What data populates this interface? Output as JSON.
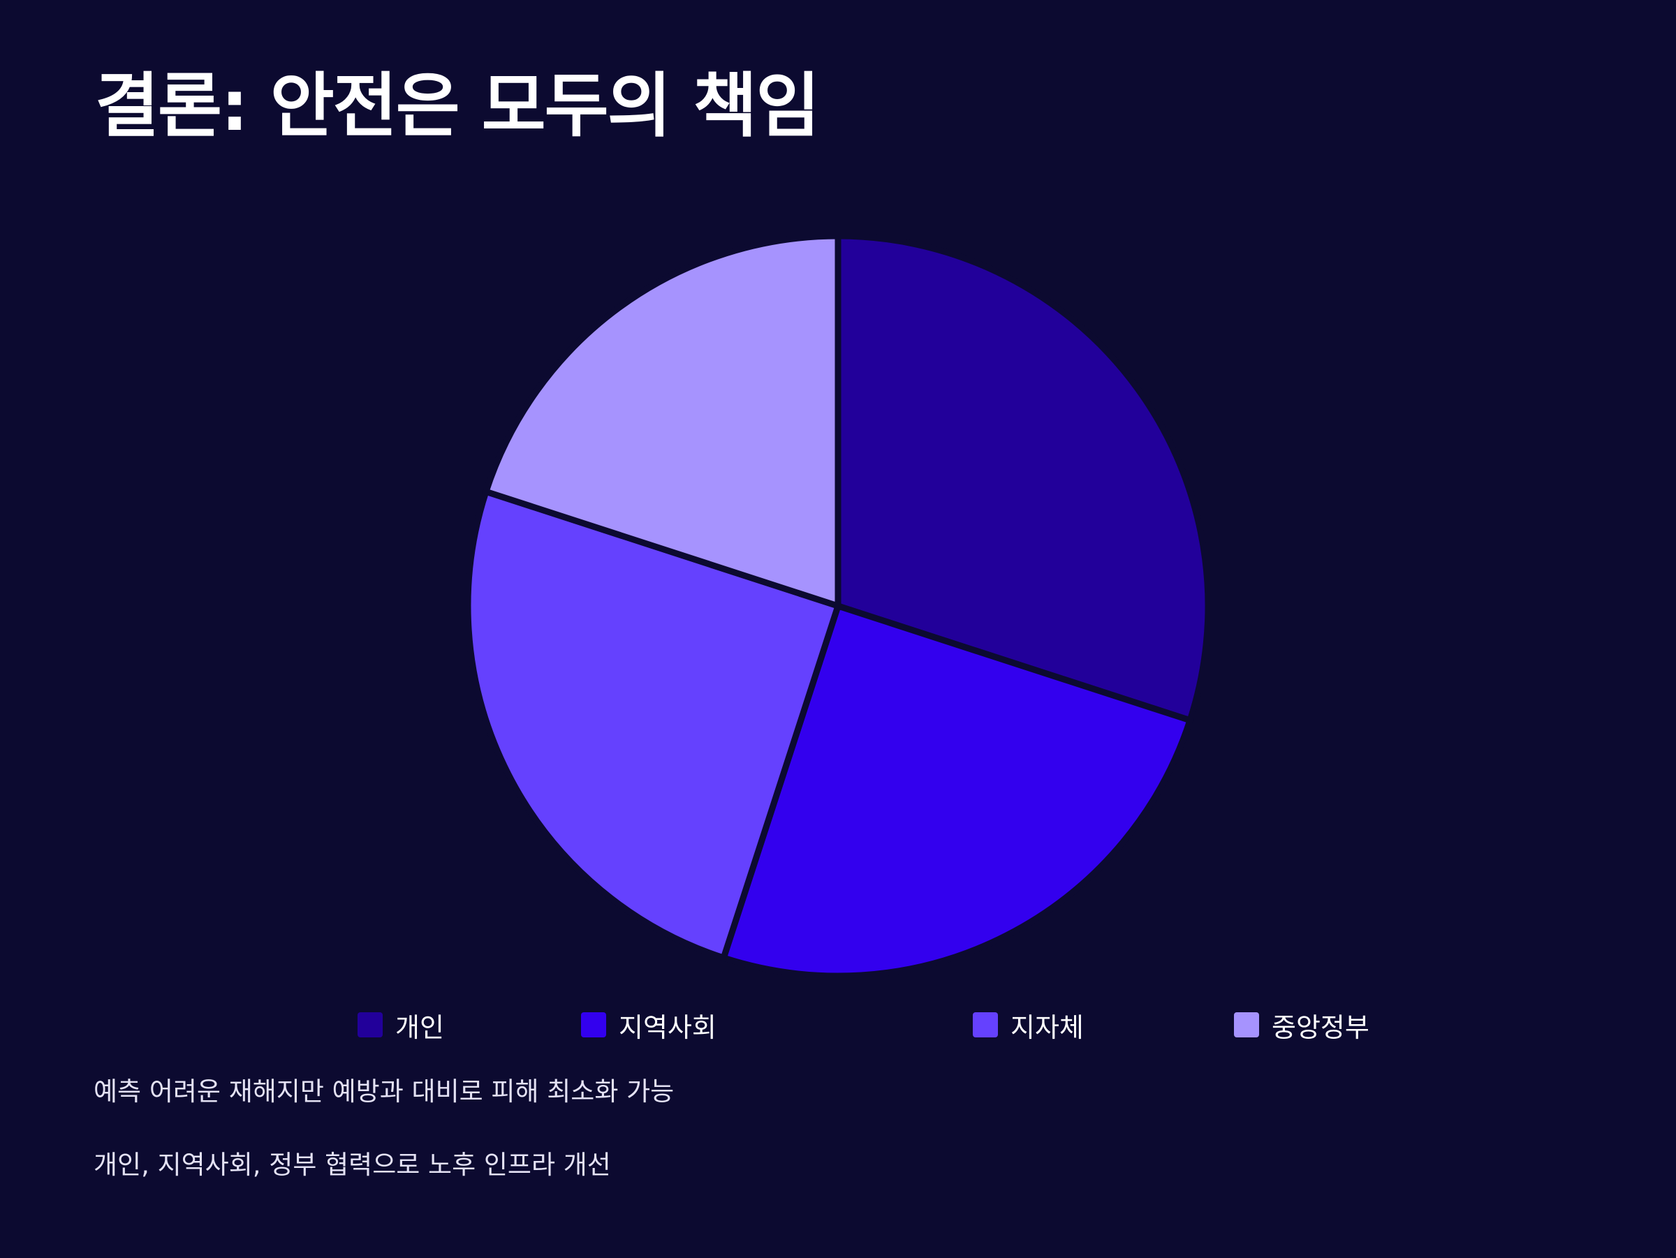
{
  "slide": {
    "title": "결론: 안전은 모두의 책임",
    "notes": [
      "예측 어려운 재해지만 예방과 대비로 피해 최소화 가능",
      "개인, 지역사회, 정부 협력으로 노후 인프라 개선"
    ]
  },
  "colors": {
    "background": "#0c0a30",
    "slice_separator": "#0c0a30"
  },
  "chart_data": {
    "type": "pie",
    "title": "",
    "categories": [
      "개인",
      "지역사회",
      "지자체",
      "중앙정부"
    ],
    "values": [
      30,
      25,
      25,
      20
    ],
    "unit": "%",
    "colors": [
      "#22009a",
      "#3300ee",
      "#6541fe",
      "#a693fe"
    ],
    "start_angle": "12 o'clock",
    "direction": "clockwise",
    "legend": {
      "position": "bottom",
      "items": [
        "개인",
        "지역사회",
        "지자체",
        "중앙정부"
      ]
    }
  }
}
